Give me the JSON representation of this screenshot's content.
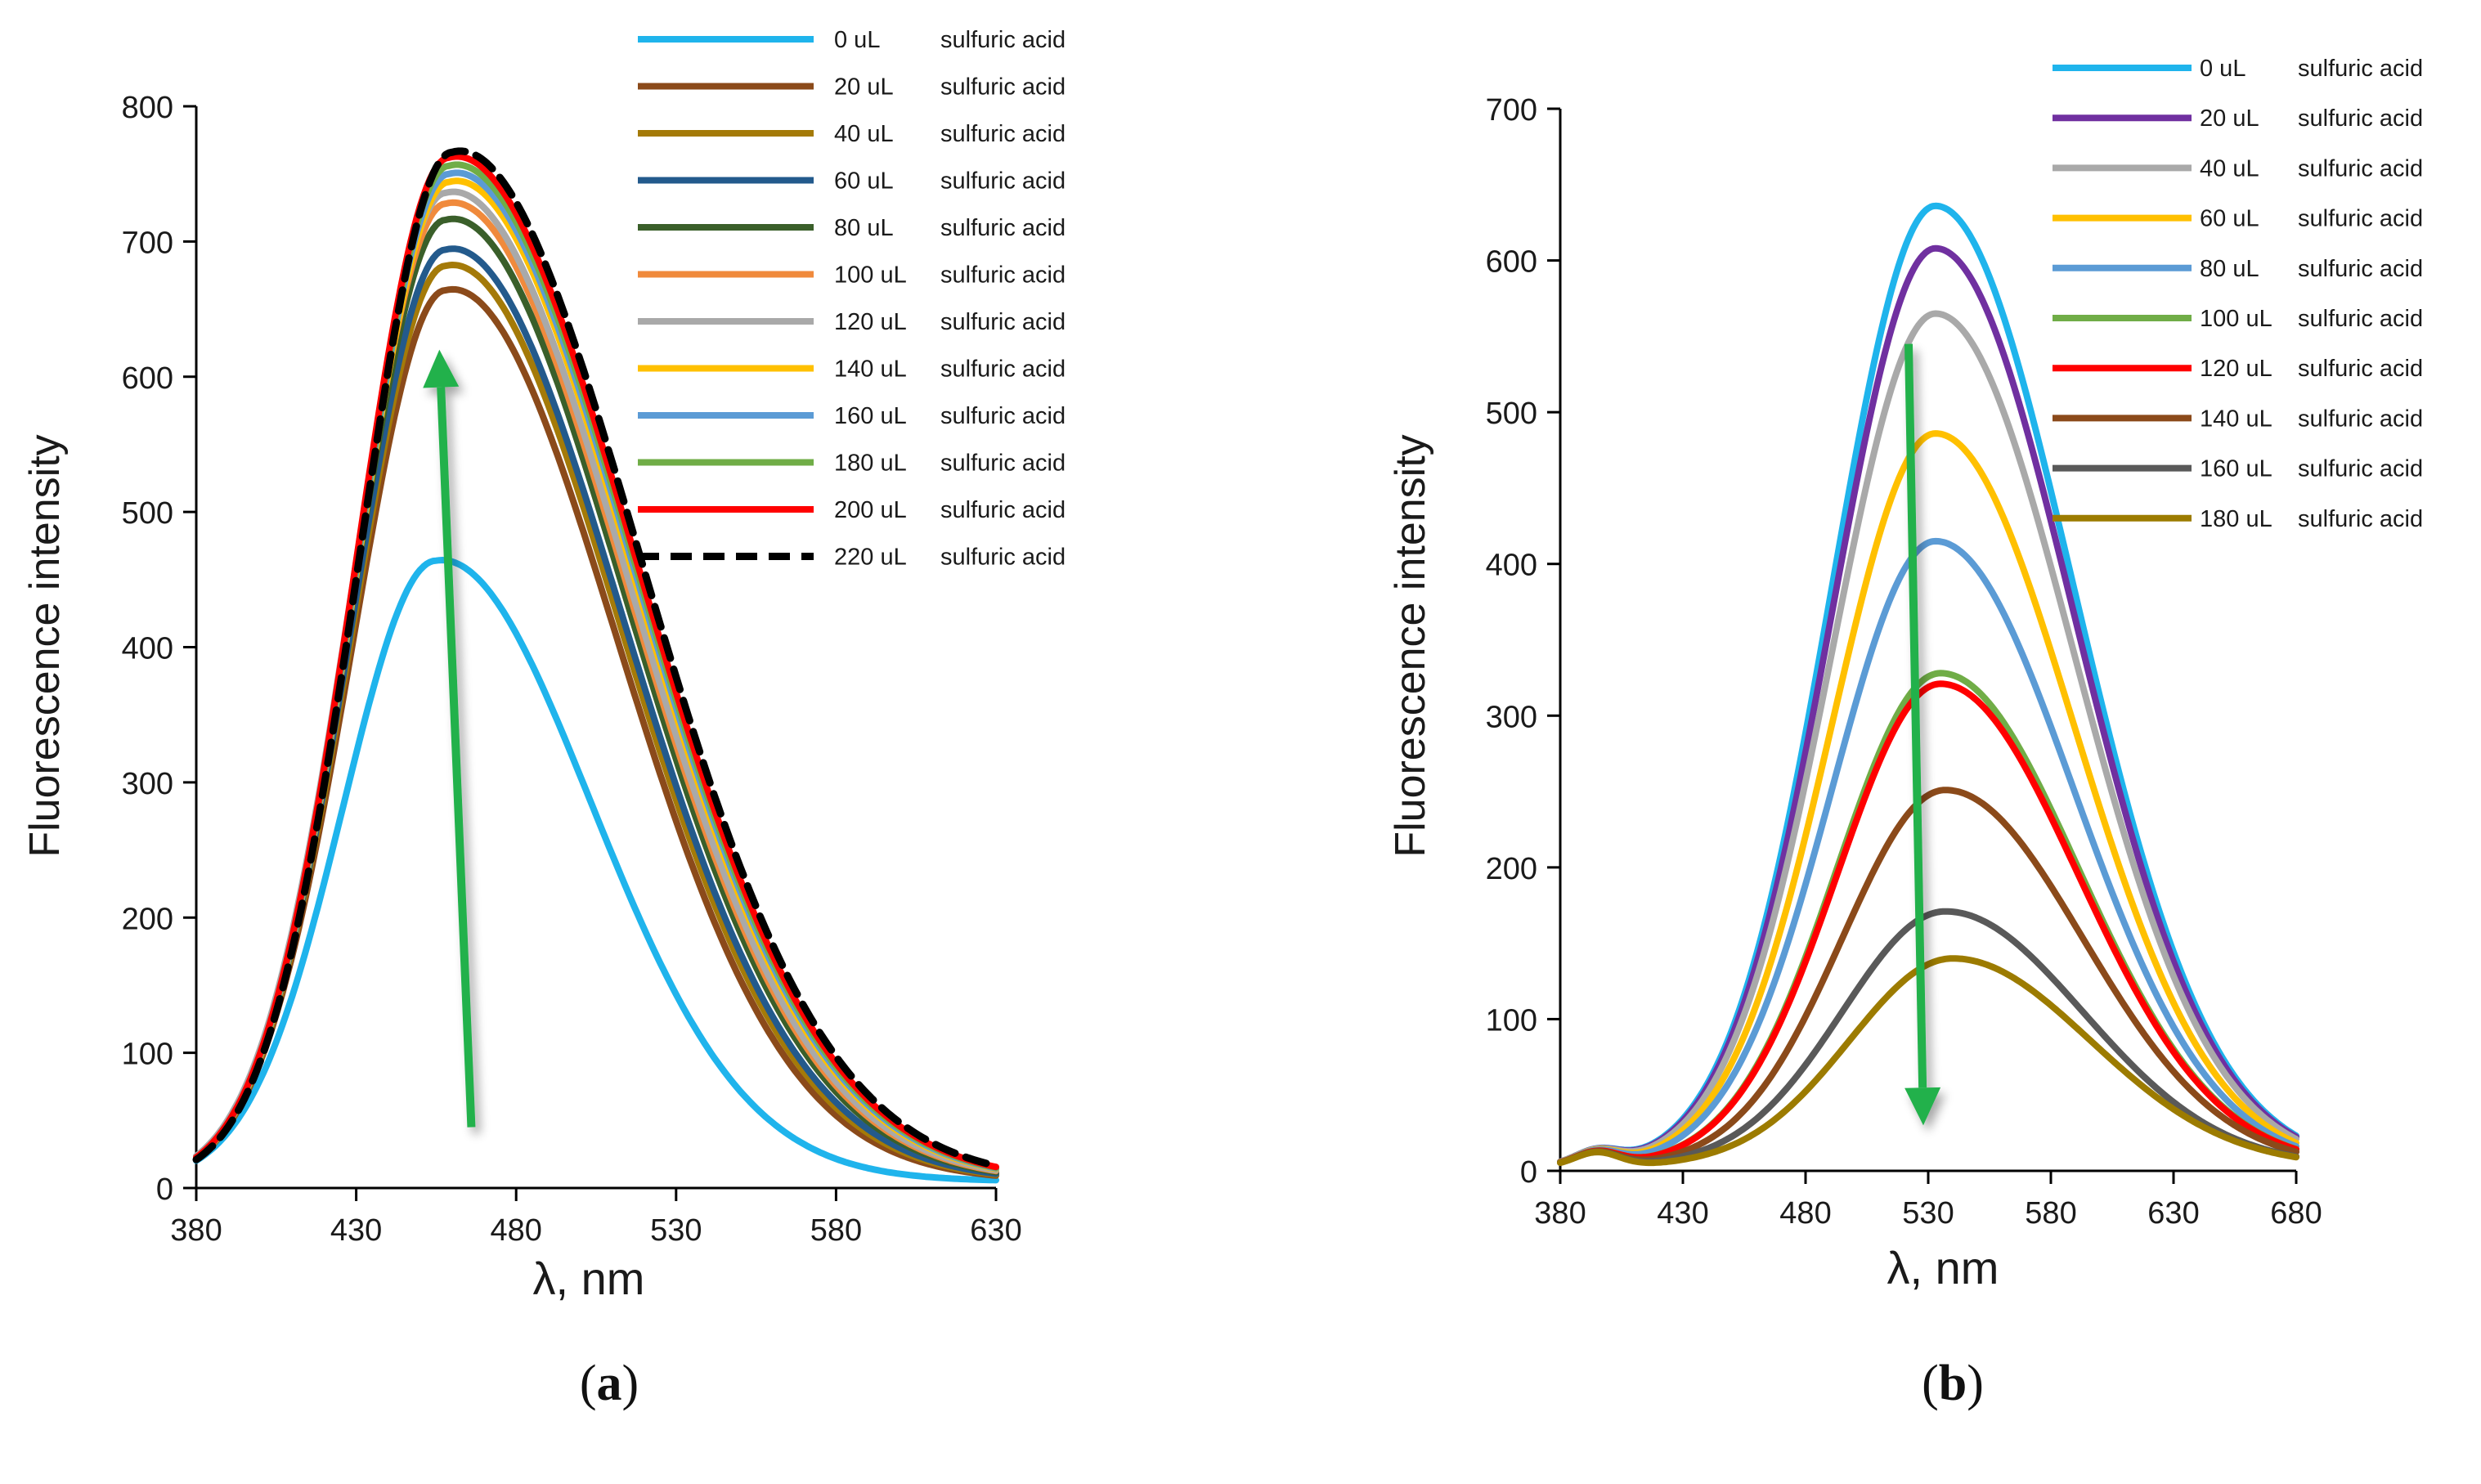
{
  "figure": {
    "panel_a_label_prefix": "(",
    "panel_a_label_letter": "a",
    "panel_a_label_suffix": ")",
    "panel_b_label_prefix": "(",
    "panel_b_label_letter": "b",
    "panel_b_label_suffix": ")"
  },
  "chart_data": [
    {
      "id": "a",
      "type": "line",
      "xlabel": "λ, nm",
      "ylabel": "Fluorescence intensity",
      "xlim": [
        380,
        630
      ],
      "ylim": [
        0,
        800
      ],
      "xticks": [
        380,
        430,
        480,
        530,
        580,
        630
      ],
      "yticks": [
        0,
        100,
        200,
        300,
        400,
        500,
        600,
        700,
        800
      ],
      "trend_arrow": {
        "direction": "up",
        "color": "#22b14c",
        "from": [
          466,
          45
        ],
        "to": [
          456,
          620
        ]
      },
      "series": [
        {
          "name": "0 uL",
          "label_suffix": "sulfuric acid",
          "color": "#1fb4ec",
          "dash": false,
          "peak_x": 455,
          "peak_y": 460
        },
        {
          "name": "20 uL",
          "label_suffix": "sulfuric acid",
          "color": "#8b4a1a",
          "dash": false,
          "peak_x": 458,
          "peak_y": 660
        },
        {
          "name": "40 uL",
          "label_suffix": "sulfuric acid",
          "color": "#a47a08",
          "dash": false,
          "peak_x": 458,
          "peak_y": 678
        },
        {
          "name": "60 uL",
          "label_suffix": "sulfuric acid",
          "color": "#235a8c",
          "dash": false,
          "peak_x": 458,
          "peak_y": 690
        },
        {
          "name": "80 uL",
          "label_suffix": "sulfuric acid",
          "color": "#3a5f2a",
          "dash": false,
          "peak_x": 458,
          "peak_y": 712
        },
        {
          "name": "100 uL",
          "label_suffix": "sulfuric acid",
          "color": "#f08a3c",
          "dash": false,
          "peak_x": 458,
          "peak_y": 724
        },
        {
          "name": "120 uL",
          "label_suffix": "sulfuric acid",
          "color": "#a9a9a9",
          "dash": false,
          "peak_x": 458,
          "peak_y": 732
        },
        {
          "name": "140 uL",
          "label_suffix": "sulfuric acid",
          "color": "#ffc000",
          "dash": false,
          "peak_x": 459,
          "peak_y": 740
        },
        {
          "name": "160 uL",
          "label_suffix": "sulfuric acid",
          "color": "#5b9bd5",
          "dash": false,
          "peak_x": 459,
          "peak_y": 746
        },
        {
          "name": "180 uL",
          "label_suffix": "sulfuric acid",
          "color": "#70ad47",
          "dash": false,
          "peak_x": 459,
          "peak_y": 752
        },
        {
          "name": "200 uL",
          "label_suffix": "sulfuric acid",
          "color": "#ff0000",
          "dash": false,
          "peak_x": 459,
          "peak_y": 758
        },
        {
          "name": "220 uL",
          "label_suffix": "sulfuric acid",
          "color": "#000000",
          "dash": true,
          "peak_x": 460,
          "peak_y": 762
        }
      ]
    },
    {
      "id": "b",
      "type": "line",
      "xlabel": "λ, nm",
      "ylabel": "Fluorescence intensity",
      "xlim": [
        380,
        680
      ],
      "ylim": [
        0,
        700
      ],
      "xticks": [
        380,
        430,
        480,
        530,
        580,
        630,
        680
      ],
      "yticks": [
        0,
        100,
        200,
        300,
        400,
        500,
        600,
        700
      ],
      "trend_arrow": {
        "direction": "down",
        "color": "#22b14c",
        "from": [
          522,
          545
        ],
        "to": [
          528,
          30
        ]
      },
      "series": [
        {
          "name": "0 uL",
          "label_suffix": "sulfuric acid",
          "color": "#1fb4ec",
          "dash": false,
          "peak_x": 533,
          "peak_y": 633
        },
        {
          "name": "20 uL",
          "label_suffix": "sulfuric acid",
          "color": "#7030a0",
          "dash": false,
          "peak_x": 533,
          "peak_y": 605
        },
        {
          "name": "40 uL",
          "label_suffix": "sulfuric acid",
          "color": "#a9a9a9",
          "dash": false,
          "peak_x": 533,
          "peak_y": 562
        },
        {
          "name": "60 uL",
          "label_suffix": "sulfuric acid",
          "color": "#ffc000",
          "dash": false,
          "peak_x": 533,
          "peak_y": 483
        },
        {
          "name": "80 uL",
          "label_suffix": "sulfuric acid",
          "color": "#5b9bd5",
          "dash": false,
          "peak_x": 533,
          "peak_y": 412
        },
        {
          "name": "100 uL",
          "label_suffix": "sulfuric acid",
          "color": "#70ad47",
          "dash": false,
          "peak_x": 535,
          "peak_y": 325
        },
        {
          "name": "120 uL",
          "label_suffix": "sulfuric acid",
          "color": "#ff0000",
          "dash": false,
          "peak_x": 535,
          "peak_y": 318
        },
        {
          "name": "140 uL",
          "label_suffix": "sulfuric acid",
          "color": "#8b4a1a",
          "dash": false,
          "peak_x": 537,
          "peak_y": 248
        },
        {
          "name": "160 uL",
          "label_suffix": "sulfuric acid",
          "color": "#595959",
          "dash": false,
          "peak_x": 537,
          "peak_y": 168
        },
        {
          "name": "180 uL",
          "label_suffix": "sulfuric acid",
          "color": "#9c7b00",
          "dash": false,
          "peak_x": 540,
          "peak_y": 137
        }
      ]
    }
  ]
}
